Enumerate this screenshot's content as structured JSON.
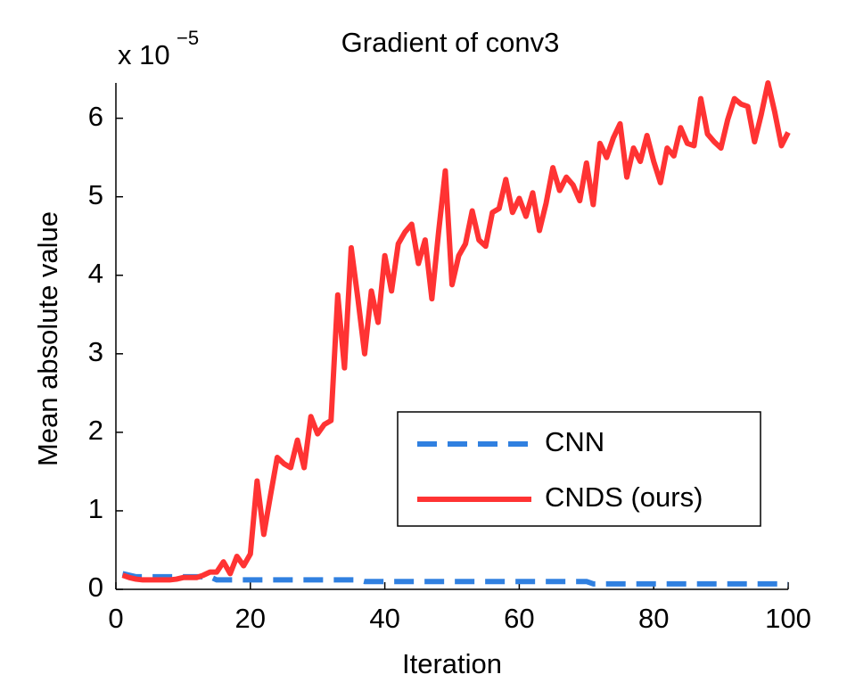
{
  "chart_data": {
    "type": "line",
    "title": "Gradient of conv3",
    "x_label": "Iteration",
    "y_label": "Mean absolute value",
    "y_multiplier": {
      "base": "x 10",
      "exponent": "−5"
    },
    "xlim": [
      0,
      100
    ],
    "xticks": [
      0,
      20,
      40,
      60,
      80,
      100
    ],
    "ylim": [
      0,
      6.45
    ],
    "yticks": [
      0,
      1,
      2,
      3,
      4,
      5,
      6
    ],
    "legend": "lower right",
    "x": [
      1,
      2,
      3,
      4,
      5,
      6,
      7,
      8,
      9,
      10,
      11,
      12,
      13,
      14,
      15,
      16,
      17,
      18,
      19,
      20,
      21,
      22,
      23,
      24,
      25,
      26,
      27,
      28,
      29,
      30,
      31,
      32,
      33,
      34,
      35,
      36,
      37,
      38,
      39,
      40,
      41,
      42,
      43,
      44,
      45,
      46,
      47,
      48,
      49,
      50,
      51,
      52,
      53,
      54,
      55,
      56,
      57,
      58,
      59,
      60,
      61,
      62,
      63,
      64,
      65,
      66,
      67,
      68,
      69,
      70,
      71,
      72,
      73,
      74,
      75,
      76,
      77,
      78,
      79,
      80,
      81,
      82,
      83,
      84,
      85,
      86,
      87,
      88,
      89,
      90,
      91,
      92,
      93,
      94,
      95,
      96,
      97,
      98,
      99,
      100
    ],
    "series": [
      {
        "name": "CNN",
        "color": "#3080e0",
        "dashed": true,
        "values": [
          0.2,
          0.18,
          0.16,
          0.16,
          0.16,
          0.16,
          0.16,
          0.16,
          0.16,
          0.16,
          0.16,
          0.16,
          0.16,
          0.16,
          0.12,
          0.12,
          0.12,
          0.12,
          0.12,
          0.12,
          0.12,
          0.12,
          0.12,
          0.12,
          0.12,
          0.12,
          0.12,
          0.12,
          0.12,
          0.12,
          0.12,
          0.12,
          0.12,
          0.12,
          0.12,
          0.12,
          0.1,
          0.1,
          0.1,
          0.1,
          0.1,
          0.1,
          0.1,
          0.1,
          0.1,
          0.1,
          0.1,
          0.1,
          0.1,
          0.1,
          0.1,
          0.1,
          0.1,
          0.1,
          0.1,
          0.1,
          0.1,
          0.1,
          0.1,
          0.1,
          0.1,
          0.1,
          0.1,
          0.1,
          0.1,
          0.1,
          0.1,
          0.1,
          0.1,
          0.1,
          0.07,
          0.07,
          0.07,
          0.07,
          0.07,
          0.07,
          0.07,
          0.07,
          0.07,
          0.07,
          0.07,
          0.07,
          0.07,
          0.07,
          0.07,
          0.07,
          0.07,
          0.07,
          0.07,
          0.07,
          0.07,
          0.07,
          0.07,
          0.07,
          0.07,
          0.07,
          0.07,
          0.07,
          0.07,
          0.07
        ]
      },
      {
        "name": "CNDS (ours)",
        "color": "#ff3333",
        "dashed": false,
        "values": [
          0.18,
          0.15,
          0.13,
          0.12,
          0.12,
          0.12,
          0.12,
          0.12,
          0.13,
          0.15,
          0.15,
          0.15,
          0.18,
          0.22,
          0.22,
          0.35,
          0.2,
          0.42,
          0.3,
          0.45,
          1.38,
          0.7,
          1.2,
          1.68,
          1.6,
          1.55,
          1.9,
          1.55,
          2.2,
          1.98,
          2.1,
          2.15,
          3.75,
          2.82,
          4.35,
          3.7,
          3.0,
          3.8,
          3.4,
          4.25,
          3.8,
          4.4,
          4.55,
          4.65,
          4.15,
          4.45,
          3.7,
          4.55,
          5.33,
          3.88,
          4.25,
          4.4,
          4.82,
          4.45,
          4.37,
          4.8,
          4.85,
          5.22,
          4.8,
          4.98,
          4.75,
          5.05,
          4.57,
          4.92,
          5.37,
          5.08,
          5.25,
          5.15,
          4.95,
          5.43,
          4.9,
          5.68,
          5.5,
          5.75,
          5.93,
          5.25,
          5.62,
          5.45,
          5.78,
          5.45,
          5.18,
          5.62,
          5.52,
          5.88,
          5.68,
          5.65,
          6.25,
          5.8,
          5.7,
          5.62,
          5.98,
          6.25,
          6.18,
          6.15,
          5.7,
          6.05,
          6.45,
          6.08,
          5.65,
          5.82
        ]
      }
    ]
  }
}
